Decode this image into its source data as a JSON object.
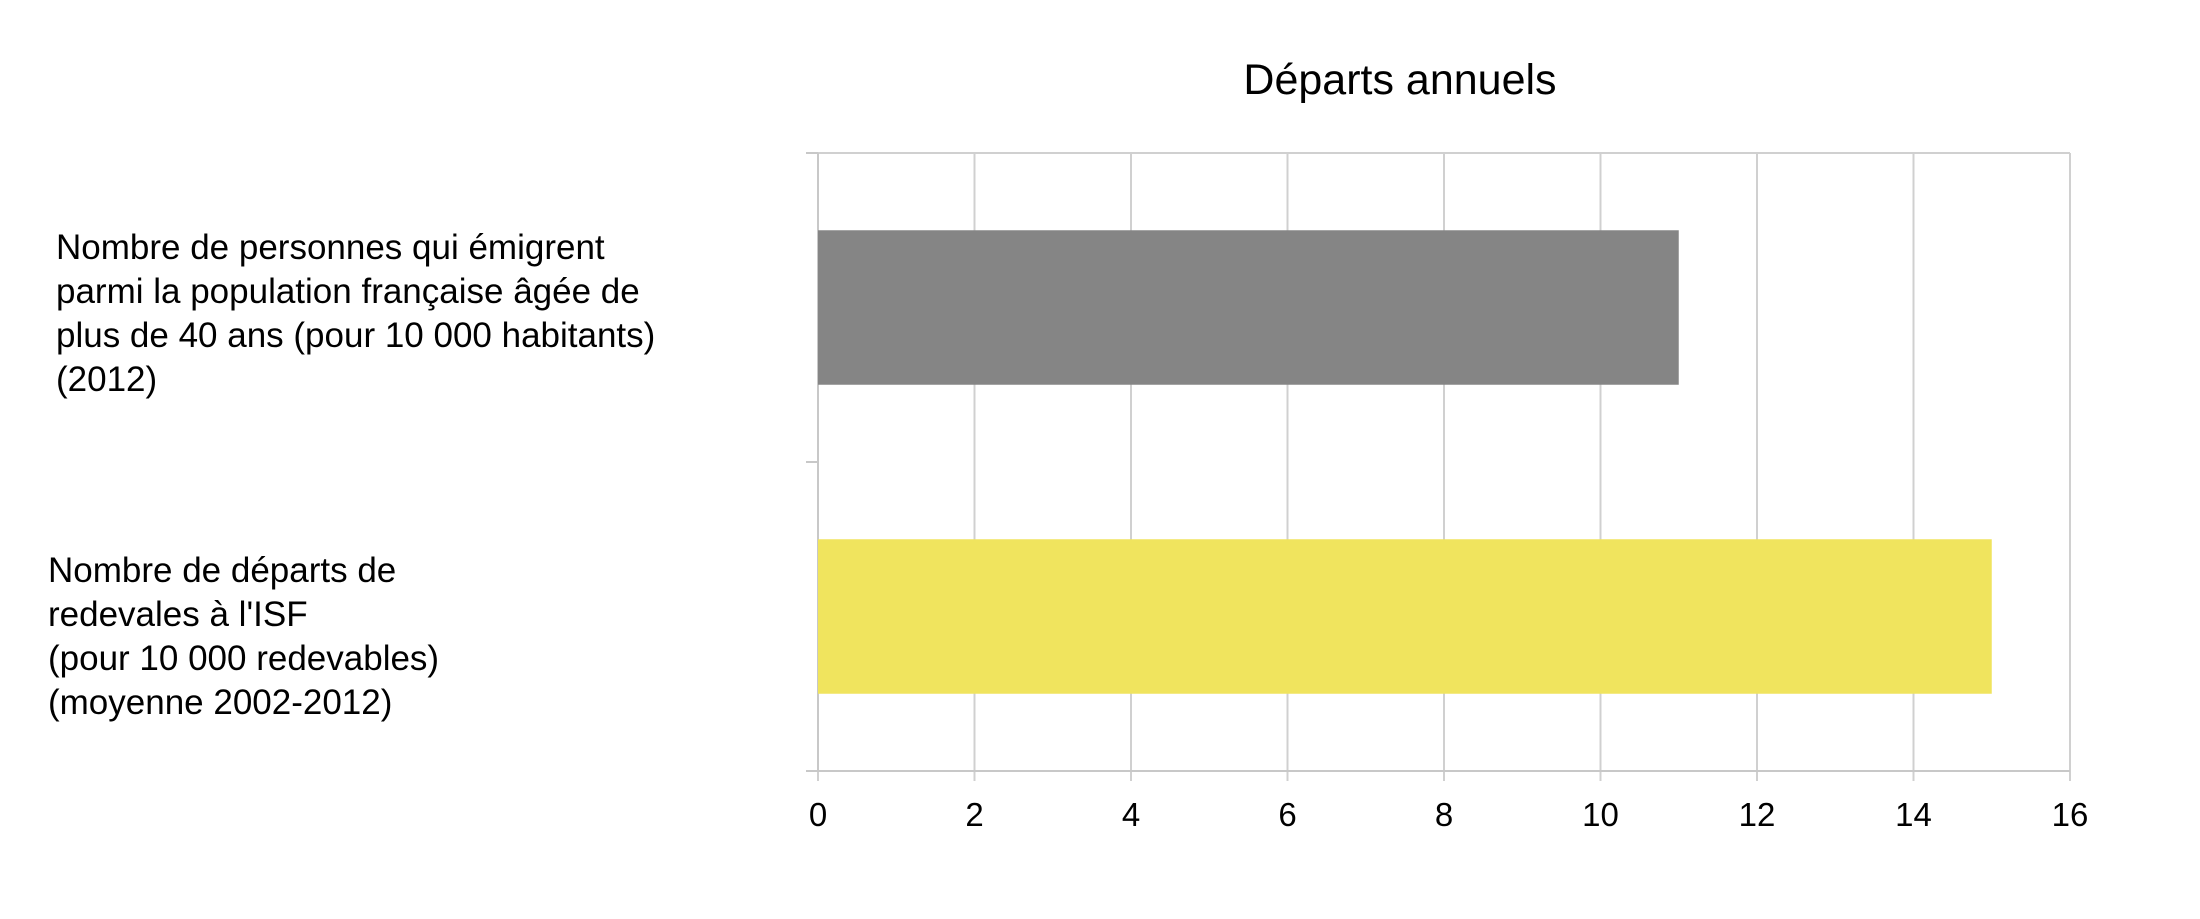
{
  "chart_data": {
    "type": "bar",
    "orientation": "horizontal",
    "title": "Départs annuels",
    "xlabel": "",
    "ylabel": "",
    "xlim": [
      0,
      16
    ],
    "xticks": [
      0,
      2,
      4,
      6,
      8,
      10,
      12,
      14,
      16
    ],
    "grid": true,
    "legend": "none",
    "categories": [
      "Nombre de personnes qui émigrent parmi la population française âgée de plus de 40 ans (pour 10 000 habitants) (2012)",
      "Nombre de départs de redevales à l'ISF (pour 10 000 redevables) (moyenne 2002-2012)"
    ],
    "category_lines": [
      [
        "Nombre de personnes qui émigrent",
        "parmi la population française âgée de",
        "plus de 40 ans (pour 10 000 habitants)",
        "(2012)"
      ],
      [
        "Nombre de départs de",
        "redevales à l'ISF",
        "(pour 10 000 redevables)",
        "(moyenne 2002-2012)"
      ]
    ],
    "values": [
      11,
      15
    ],
    "colors": [
      "#858585",
      "#f0e45e"
    ]
  }
}
